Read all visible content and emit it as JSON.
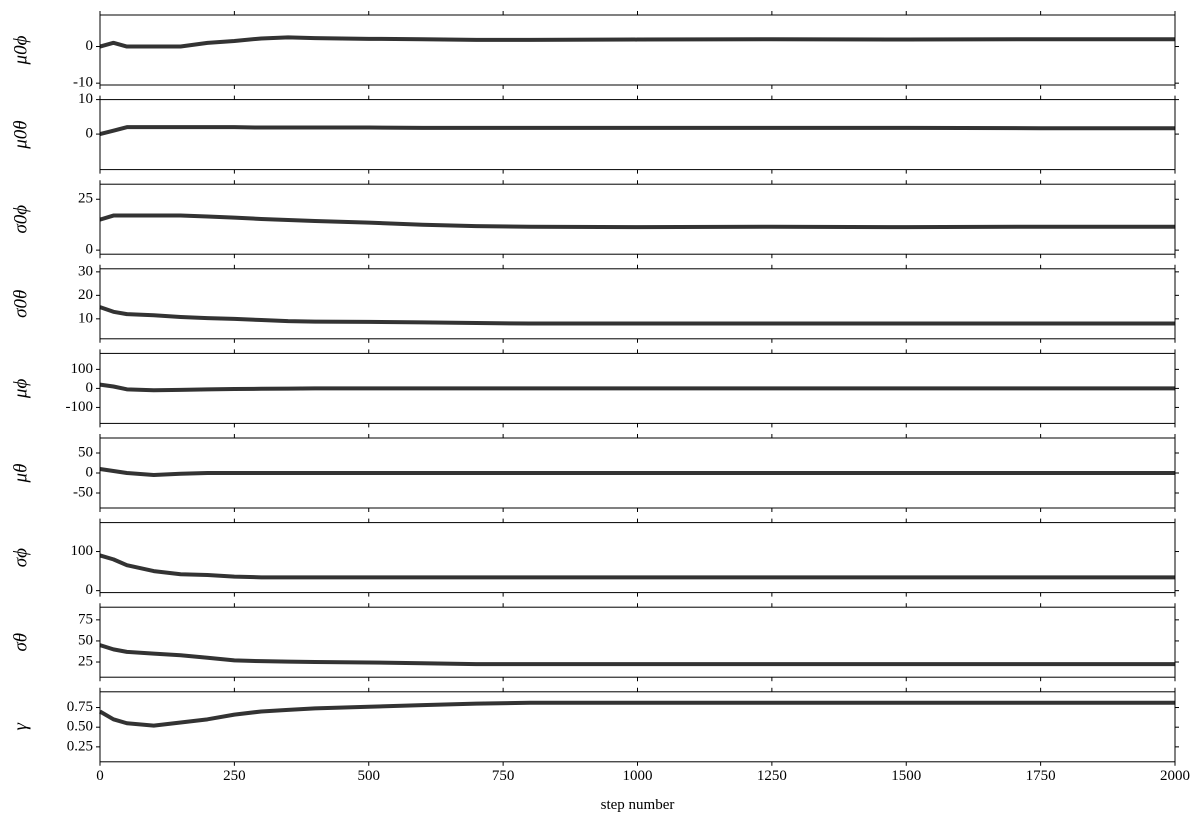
{
  "chart_data": [
    {
      "type": "line",
      "ylabel": "μ0ϕ",
      "color": "#000000",
      "xlim": [
        0,
        2000
      ],
      "xticks": [
        0,
        250,
        500,
        750,
        1000,
        1250,
        1500,
        1750,
        2000
      ],
      "ylim": [
        -10.5,
        8.6
      ],
      "yticks": [
        -10,
        0
      ],
      "x": [
        0,
        25,
        50,
        100,
        150,
        200,
        250,
        300,
        350,
        400,
        500,
        600,
        700,
        800,
        1000,
        1250,
        1500,
        1750,
        2000
      ],
      "values": [
        0,
        1,
        0,
        0,
        0,
        1,
        1.5,
        2.2,
        2.5,
        2.3,
        2.1,
        2,
        1.8,
        1.8,
        1.9,
        2,
        1.9,
        2,
        2
      ]
    },
    {
      "type": "line",
      "ylabel": "μ0θ",
      "color": "#000000",
      "xlim": [
        0,
        2000
      ],
      "xticks": [
        0,
        250,
        500,
        750,
        1000,
        1250,
        1500,
        1750,
        2000
      ],
      "ylim": [
        -10.3,
        10
      ],
      "yticks": [
        0,
        10
      ],
      "x": [
        0,
        25,
        50,
        100,
        150,
        200,
        250,
        300,
        350,
        400,
        500,
        600,
        700,
        800,
        1000,
        1250,
        1500,
        1750,
        2000
      ],
      "values": [
        0,
        1,
        2,
        2,
        2,
        2,
        2,
        1.9,
        1.9,
        1.9,
        1.9,
        1.8,
        1.8,
        1.8,
        1.8,
        1.8,
        1.8,
        1.7,
        1.7
      ]
    },
    {
      "type": "line",
      "ylabel": "σ0ϕ",
      "color": "#000000",
      "xlim": [
        0,
        2000
      ],
      "xticks": [
        0,
        250,
        500,
        750,
        1000,
        1250,
        1500,
        1750,
        2000
      ],
      "ylim": [
        -2,
        32.4
      ],
      "yticks": [
        0,
        25
      ],
      "x": [
        0,
        25,
        50,
        100,
        150,
        200,
        250,
        300,
        350,
        400,
        500,
        600,
        700,
        800,
        1000,
        1250,
        1500,
        1750,
        2000
      ],
      "values": [
        15,
        17,
        17,
        17,
        17,
        16.5,
        16,
        15.3,
        14.8,
        14.3,
        13.5,
        12.5,
        11.8,
        11.5,
        11.3,
        11.5,
        11.3,
        11.5,
        11.5
      ]
    },
    {
      "type": "line",
      "ylabel": "σ0θ",
      "color": "#000000",
      "xlim": [
        0,
        2000
      ],
      "xticks": [
        0,
        250,
        500,
        750,
        1000,
        1250,
        1500,
        1750,
        2000
      ],
      "ylim": [
        1.5,
        31.3
      ],
      "yticks": [
        10,
        20,
        30
      ],
      "x": [
        0,
        25,
        50,
        100,
        150,
        200,
        250,
        300,
        350,
        400,
        500,
        600,
        700,
        800,
        1000,
        1250,
        1500,
        1750,
        2000
      ],
      "values": [
        15,
        13,
        12,
        11.5,
        10.8,
        10.3,
        10,
        9.5,
        9,
        8.8,
        8.7,
        8.5,
        8.2,
        8,
        8,
        8,
        8,
        8,
        8
      ]
    },
    {
      "type": "line",
      "ylabel": "μϕ",
      "color": "#000000",
      "xlim": [
        0,
        2000
      ],
      "xticks": [
        0,
        250,
        500,
        750,
        1000,
        1250,
        1500,
        1750,
        2000
      ],
      "ylim": [
        -184,
        184
      ],
      "yticks": [
        -100,
        0,
        100
      ],
      "x": [
        0,
        25,
        50,
        100,
        150,
        200,
        250,
        300,
        350,
        400,
        500,
        600,
        700,
        800,
        1000,
        1250,
        1500,
        1750,
        2000
      ],
      "values": [
        20,
        10,
        -5,
        -10,
        -8,
        -5,
        -3,
        -2,
        -1,
        0,
        0,
        0,
        0,
        0,
        0,
        0,
        0,
        0,
        0
      ]
    },
    {
      "type": "line",
      "ylabel": "μθ",
      "color": "#000000",
      "xlim": [
        0,
        2000
      ],
      "xticks": [
        0,
        250,
        500,
        750,
        1000,
        1250,
        1500,
        1750,
        2000
      ],
      "ylim": [
        -87.5,
        87.5
      ],
      "yticks": [
        -50,
        0,
        50
      ],
      "x": [
        0,
        25,
        50,
        100,
        150,
        200,
        250,
        300,
        350,
        400,
        500,
        600,
        700,
        800,
        1000,
        1250,
        1500,
        1750,
        2000
      ],
      "values": [
        10,
        5,
        0,
        -5,
        -2,
        0,
        0,
        0,
        0,
        0,
        0,
        0,
        0,
        0,
        0,
        0,
        0,
        0,
        0
      ]
    },
    {
      "type": "line",
      "ylabel": "σϕ",
      "color": "#000000",
      "xlim": [
        0,
        2000
      ],
      "xticks": [
        0,
        250,
        500,
        750,
        1000,
        1250,
        1500,
        1750,
        2000
      ],
      "ylim": [
        -5,
        174
      ],
      "yticks": [
        0,
        100
      ],
      "x": [
        0,
        25,
        50,
        100,
        150,
        200,
        250,
        300,
        350,
        400,
        500,
        600,
        700,
        800,
        1000,
        1250,
        1500,
        1750,
        2000
      ],
      "values": [
        90,
        80,
        65,
        50,
        42,
        40,
        36,
        34,
        34,
        34,
        34,
        34,
        34,
        34,
        34,
        34,
        34,
        34,
        34
      ]
    },
    {
      "type": "line",
      "ylabel": "σθ",
      "color": "#000000",
      "xlim": [
        0,
        2000
      ],
      "xticks": [
        0,
        250,
        500,
        750,
        1000,
        1250,
        1500,
        1750,
        2000
      ],
      "ylim": [
        7,
        90
      ],
      "yticks": [
        25,
        50,
        75
      ],
      "x": [
        0,
        25,
        50,
        100,
        150,
        200,
        250,
        300,
        350,
        400,
        500,
        600,
        700,
        800,
        1000,
        1250,
        1500,
        1750,
        2000
      ],
      "values": [
        45,
        40,
        37,
        35,
        33,
        30,
        27,
        26,
        25.5,
        25,
        24.5,
        23.5,
        22.5,
        22.5,
        22.5,
        22.5,
        22.5,
        22.5,
        22.5
      ]
    },
    {
      "type": "line",
      "ylabel": "γ",
      "xlabel": "step number",
      "color": "#000000",
      "xlim": [
        0,
        2000
      ],
      "xticks": [
        0,
        250,
        500,
        750,
        1000,
        1250,
        1500,
        1750,
        2000
      ],
      "ylim": [
        0.06,
        0.95
      ],
      "yticks": [
        0.25,
        {
          "value": 0.5,
          "label": "0.50"
        },
        0.75
      ],
      "x": [
        0,
        25,
        50,
        100,
        150,
        200,
        250,
        300,
        350,
        400,
        500,
        600,
        700,
        800,
        1000,
        1250,
        1500,
        1750,
        2000
      ],
      "values": [
        0.7,
        0.6,
        0.55,
        0.52,
        0.56,
        0.6,
        0.66,
        0.7,
        0.72,
        0.74,
        0.76,
        0.78,
        0.8,
        0.81,
        0.81,
        0.81,
        0.81,
        0.81,
        0.81
      ]
    }
  ]
}
